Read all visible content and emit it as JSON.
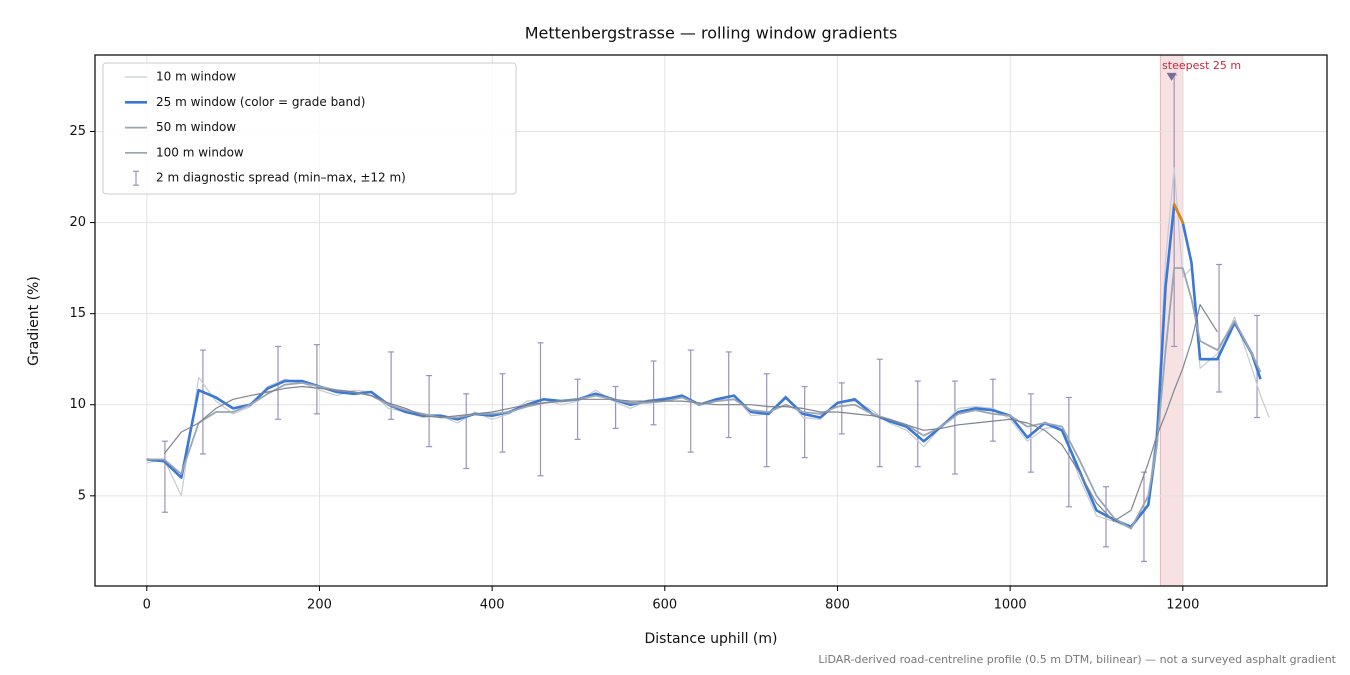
{
  "chart_data": {
    "type": "line",
    "title": "Mettenbergstrasse — rolling window gradients",
    "x_label": "Distance uphill (m)",
    "y_label": "Gradient (%)",
    "footnote": "LiDAR-derived road-centreline profile (0.5 m DTM, bilinear) — not a surveyed asphalt gradient",
    "xlim": [
      -60,
      1367
    ],
    "ylim": [
      0.05,
      29.2
    ],
    "xticks": [
      0,
      200,
      400,
      600,
      800,
      1000,
      1200
    ],
    "yticks": [
      5,
      10,
      15,
      20,
      25
    ],
    "grid": true,
    "legend": "upper left",
    "x": [
      0,
      20,
      40,
      60,
      80,
      100,
      120,
      140,
      160,
      180,
      200,
      220,
      240,
      260,
      280,
      300,
      320,
      340,
      360,
      380,
      400,
      420,
      440,
      460,
      480,
      500,
      520,
      540,
      560,
      580,
      600,
      620,
      640,
      660,
      680,
      700,
      720,
      740,
      760,
      780,
      800,
      820,
      840,
      860,
      880,
      900,
      920,
      940,
      960,
      980,
      1000,
      1020,
      1040,
      1060,
      1080,
      1100,
      1120,
      1140,
      1160,
      1170,
      1180,
      1190,
      1200,
      1210,
      1220,
      1240,
      1260,
      1280,
      1290,
      1300
    ],
    "series": [
      {
        "name": "10 m window",
        "color": "#c4ccd8",
        "width": 1.2,
        "values": [
          6.8,
          7.0,
          5.0,
          11.5,
          10.2,
          9.5,
          9.9,
          11.0,
          11.4,
          11.2,
          10.8,
          10.5,
          10.8,
          10.7,
          9.8,
          9.6,
          9.3,
          9.4,
          9.0,
          9.6,
          9.2,
          9.5,
          10.2,
          10.3,
          10.0,
          10.2,
          10.8,
          10.2,
          9.8,
          10.2,
          10.4,
          10.4,
          10.0,
          10.3,
          10.5,
          9.4,
          9.5,
          10.5,
          9.3,
          9.2,
          10.1,
          10.2,
          9.7,
          9.0,
          8.6,
          7.7,
          8.8,
          9.8,
          9.9,
          9.8,
          9.2,
          8.0,
          8.7,
          8.8,
          6.0,
          3.9,
          3.6,
          3.2,
          4.5,
          9.0,
          18.0,
          23.0,
          17.0,
          17.5,
          12.0,
          12.8,
          14.8,
          12.0,
          10.5,
          9.3
        ]
      },
      {
        "name": "25 m window (color = grade band)",
        "color": "#3a78d4",
        "width": 2.6,
        "color_bands": [
          {
            "from": 20,
            "color": "#e0860f"
          }
        ],
        "values": [
          7.0,
          6.9,
          6.0,
          10.8,
          10.4,
          9.8,
          10.0,
          10.9,
          11.3,
          11.3,
          11.0,
          10.7,
          10.6,
          10.7,
          10.0,
          9.6,
          9.4,
          9.4,
          9.2,
          9.5,
          9.4,
          9.6,
          10.0,
          10.3,
          10.2,
          10.3,
          10.6,
          10.3,
          10.0,
          10.2,
          10.3,
          10.5,
          10.0,
          10.3,
          10.5,
          9.6,
          9.5,
          10.4,
          9.5,
          9.3,
          10.1,
          10.3,
          9.5,
          9.1,
          8.8,
          8.0,
          8.8,
          9.6,
          9.8,
          9.7,
          9.4,
          8.2,
          9.0,
          8.6,
          6.4,
          4.2,
          3.7,
          3.3,
          4.5,
          8.0,
          16.5,
          21.0,
          20.0,
          17.8,
          12.5,
          12.5,
          14.5,
          12.8,
          11.4,
          null
        ]
      },
      {
        "name": "50 m window",
        "color": "#9aa6b4",
        "width": 1.8,
        "values": [
          7.0,
          7.0,
          6.2,
          9.0,
          9.6,
          9.6,
          10.0,
          10.6,
          11.1,
          11.2,
          11.0,
          10.8,
          10.7,
          10.5,
          10.0,
          9.7,
          9.5,
          9.3,
          9.3,
          9.5,
          9.5,
          9.6,
          9.9,
          10.1,
          10.2,
          10.3,
          10.5,
          10.3,
          10.1,
          10.1,
          10.2,
          10.4,
          10.0,
          10.2,
          10.3,
          9.7,
          9.6,
          10.0,
          9.6,
          9.5,
          9.9,
          10.0,
          9.5,
          9.2,
          8.9,
          8.3,
          8.8,
          9.5,
          9.7,
          9.5,
          9.4,
          8.8,
          9.0,
          8.8,
          7.0,
          5.0,
          3.8,
          3.2,
          5.0,
          7.8,
          13.0,
          17.5,
          17.5,
          15.8,
          13.5,
          13.0,
          14.6,
          12.8,
          11.8,
          null
        ]
      },
      {
        "name": "100 m window",
        "color": "#7d8590",
        "width": 1.2,
        "values": [
          null,
          7.3,
          8.5,
          9.0,
          9.8,
          10.3,
          10.5,
          10.7,
          10.9,
          11.0,
          10.9,
          10.8,
          10.7,
          10.5,
          10.1,
          9.8,
          9.4,
          9.3,
          9.4,
          9.5,
          9.6,
          9.8,
          10.0,
          10.1,
          10.2,
          10.3,
          10.3,
          10.3,
          10.2,
          10.2,
          10.2,
          10.2,
          10.1,
          10.0,
          10.0,
          10.0,
          9.9,
          9.9,
          9.8,
          9.6,
          9.6,
          9.5,
          9.4,
          9.2,
          8.9,
          8.6,
          8.7,
          8.9,
          9.0,
          9.1,
          9.2,
          9.0,
          8.6,
          7.8,
          6.3,
          4.6,
          3.6,
          4.2,
          6.8,
          8.3,
          9.5,
          10.8,
          12.0,
          13.5,
          15.5,
          14.0,
          null,
          null,
          null,
          null
        ]
      }
    ],
    "errorbars": {
      "name": "2 m diagnostic spread (min–max, ±12 m)",
      "color": "#9b93b8",
      "x": [
        21,
        65,
        152,
        197,
        283,
        327,
        370,
        412,
        456,
        499,
        543,
        587,
        630,
        674,
        718,
        762,
        805,
        849,
        893,
        936,
        980,
        1024,
        1068,
        1111,
        1155,
        1190,
        1242,
        1286
      ],
      "min": [
        4.1,
        7.3,
        9.2,
        9.5,
        9.2,
        7.7,
        6.5,
        7.4,
        6.1,
        8.1,
        8.7,
        8.9,
        7.4,
        8.2,
        6.6,
        7.1,
        8.4,
        6.6,
        6.6,
        6.2,
        8.0,
        6.3,
        4.4,
        2.2,
        1.4,
        13.2,
        10.7,
        9.3
      ],
      "max": [
        8.0,
        13.0,
        13.2,
        13.3,
        12.9,
        11.6,
        10.6,
        11.7,
        13.4,
        11.4,
        11.0,
        12.4,
        13.0,
        12.9,
        11.7,
        11.0,
        11.2,
        12.5,
        11.3,
        11.3,
        11.4,
        10.6,
        10.4,
        5.5,
        6.3,
        28.1,
        17.7,
        14.9
      ]
    },
    "annotation": {
      "text": "steepest 25 m",
      "x0": 1174,
      "x1": 1200,
      "y": 28,
      "color": "#c8283c"
    }
  }
}
